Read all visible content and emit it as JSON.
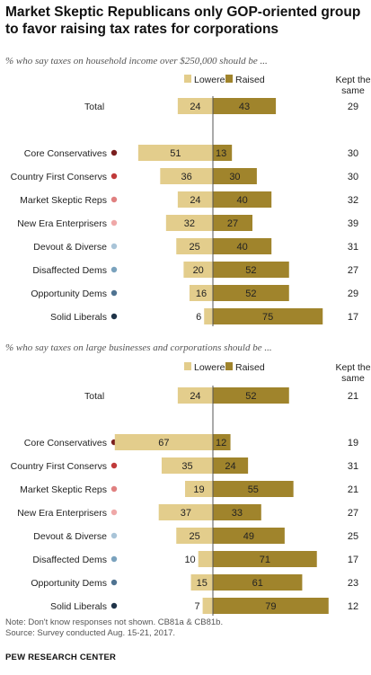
{
  "title": "Market Skeptic Republicans only GOP-oriented group to favor raising tax rates for corporations",
  "notes": {
    "line1": "Note: Don't know responses not shown. CB81a & CB81b.",
    "line2": "Source: Survey conducted Aug. 15-21, 2017.",
    "brand": "PEW RESEARCH CENTER"
  },
  "legend": {
    "lowered": "Lowered",
    "raised": "Raised",
    "kept": [
      "Kept the",
      "same"
    ]
  },
  "colors": {
    "lowered": "#e3cd8c",
    "raised": "#a0842c",
    "dots": [
      "#7a1f1f",
      "#c03a3a",
      "#e08080",
      "#efa8a8",
      "#a9c4d8",
      "#7aa2bd",
      "#4f7391",
      "#1f3348"
    ]
  },
  "chart_data": [
    {
      "type": "bar",
      "subtitle": "% who say taxes on household income over $250,000 should be ...",
      "categories": [
        "Total",
        "Core Conservatives",
        "Country First Conservs",
        "Market Skeptic Reps",
        "New Era Enterprisers",
        "Devout & Diverse",
        "Disaffected Dems",
        "Opportunity Dems",
        "Solid Liberals"
      ],
      "series": [
        {
          "name": "Lowered",
          "values": [
            24,
            51,
            36,
            24,
            32,
            25,
            20,
            16,
            6
          ]
        },
        {
          "name": "Raised",
          "values": [
            43,
            13,
            30,
            40,
            27,
            40,
            52,
            52,
            75
          ]
        },
        {
          "name": "Kept the same",
          "values": [
            29,
            30,
            30,
            32,
            39,
            31,
            27,
            29,
            17
          ]
        }
      ]
    },
    {
      "type": "bar",
      "subtitle": "% who say taxes on large businesses and corporations should be ...",
      "categories": [
        "Total",
        "Core Conservatives",
        "Country First Conservs",
        "Market Skeptic Reps",
        "New Era Enterprisers",
        "Devout & Diverse",
        "Disaffected Dems",
        "Opportunity Dems",
        "Solid Liberals"
      ],
      "series": [
        {
          "name": "Lowered",
          "values": [
            24,
            67,
            35,
            19,
            37,
            25,
            10,
            15,
            7
          ]
        },
        {
          "name": "Raised",
          "values": [
            52,
            12,
            24,
            55,
            33,
            49,
            71,
            61,
            79
          ]
        },
        {
          "name": "Kept the same",
          "values": [
            21,
            19,
            31,
            21,
            27,
            25,
            17,
            23,
            12
          ]
        }
      ]
    }
  ]
}
